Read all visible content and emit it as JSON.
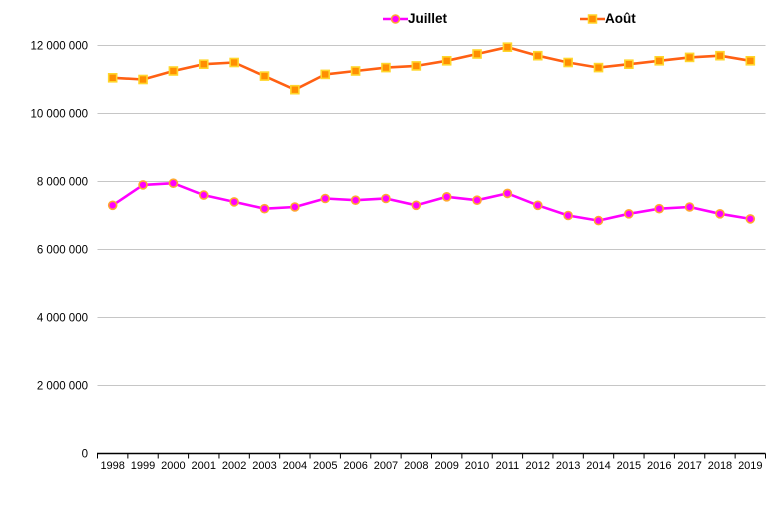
{
  "chart_data": {
    "type": "line",
    "title": "",
    "xlabel": "",
    "ylabel": "",
    "categories": [
      "1998",
      "1999",
      "2000",
      "2001",
      "2002",
      "2003",
      "2004",
      "2005",
      "2006",
      "2007",
      "2008",
      "2009",
      "2010",
      "2011",
      "2012",
      "2013",
      "2014",
      "2015",
      "2016",
      "2017",
      "2018",
      "2019"
    ],
    "series": [
      {
        "name": "Juillet",
        "marker": "circle",
        "line_color": "#FF00FF",
        "marker_color": "#FF00FF",
        "marker_border": "#FFA830",
        "values": [
          7300000,
          7900000,
          7950000,
          7600000,
          7400000,
          7200000,
          7250000,
          7500000,
          7450000,
          7500000,
          7300000,
          7550000,
          7450000,
          7650000,
          7300000,
          7000000,
          6850000,
          7050000,
          7200000,
          7250000,
          7050000,
          6900000
        ]
      },
      {
        "name": "Août",
        "marker": "square",
        "line_color": "#FF6013",
        "marker_color": "#FF8E01",
        "marker_border": "#FFD62B",
        "values": [
          11050000,
          11000000,
          11250000,
          11450000,
          11500000,
          11100000,
          10700000,
          11150000,
          11250000,
          11350000,
          11400000,
          11550000,
          11750000,
          11950000,
          11700000,
          11500000,
          11350000,
          11450000,
          11550000,
          11650000,
          11700000,
          11550000
        ]
      }
    ],
    "ylim": [
      0,
      12000000
    ],
    "ytick_step": 2000000,
    "ytick_labels": [
      "0",
      "2 000 000",
      "4 000 000",
      "6 000 000",
      "8 000 000",
      "10 000 000",
      "12 000 000"
    ],
    "grid": "horizontal",
    "legend_position": "top",
    "style": {
      "grid_color": "#C6C6C6",
      "axis_color": "#000000",
      "text_color": "#000000",
      "background": "#FFFFFF"
    }
  }
}
